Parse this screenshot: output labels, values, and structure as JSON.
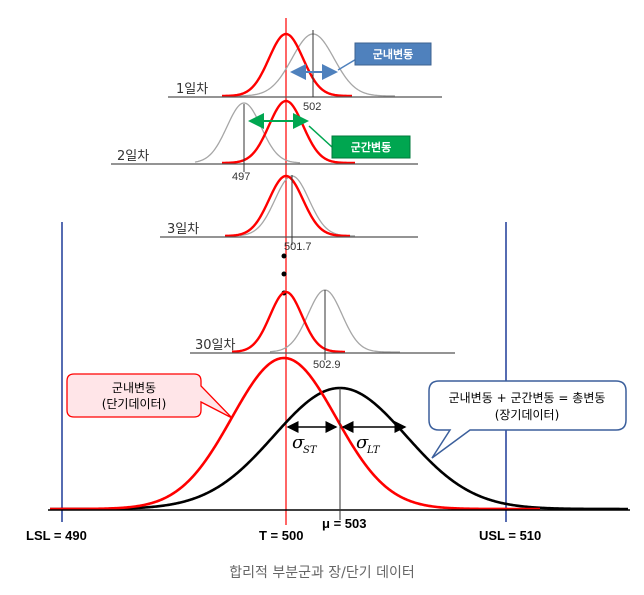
{
  "rows": [
    {
      "id": "day1",
      "label": "1일차",
      "value": "502"
    },
    {
      "id": "day2",
      "label": "2일차",
      "value": "497"
    },
    {
      "id": "day3",
      "label": "3일차",
      "value": "501.7"
    },
    {
      "id": "day30",
      "label": "30일차",
      "value": "502.9"
    }
  ],
  "boxes": {
    "within": "군내변동",
    "between": "군간변동"
  },
  "callouts": {
    "short_term": [
      "군내변동",
      "(단기데이터)"
    ],
    "total": [
      "군내변동 + 군간변동 = 총변동",
      "(장기데이터)"
    ]
  },
  "axis": {
    "lsl": "LSL = 490",
    "target": "T = 500",
    "mu": "μ = 503",
    "usl": "USL = 510"
  },
  "sigma": {
    "st_symbol": "σ",
    "st_sub": "ST",
    "lt_symbol": "σ",
    "lt_sub": "LT"
  },
  "colors": {
    "short_term": "#ff0000",
    "long_term": "#000000",
    "subgroup_shifted": "#a6a6a6",
    "spec_limit": "#1f3c99",
    "within_box": "#4f81bd",
    "between_box": "#00a650",
    "callout_border": "#ff0000",
    "callout_fill": "#ffe5e8",
    "total_callout_border": "#3b5f9c",
    "total_callout_fill": "#ffffff"
  },
  "caption": "합리적 부분군과 장/단기 데이터"
}
